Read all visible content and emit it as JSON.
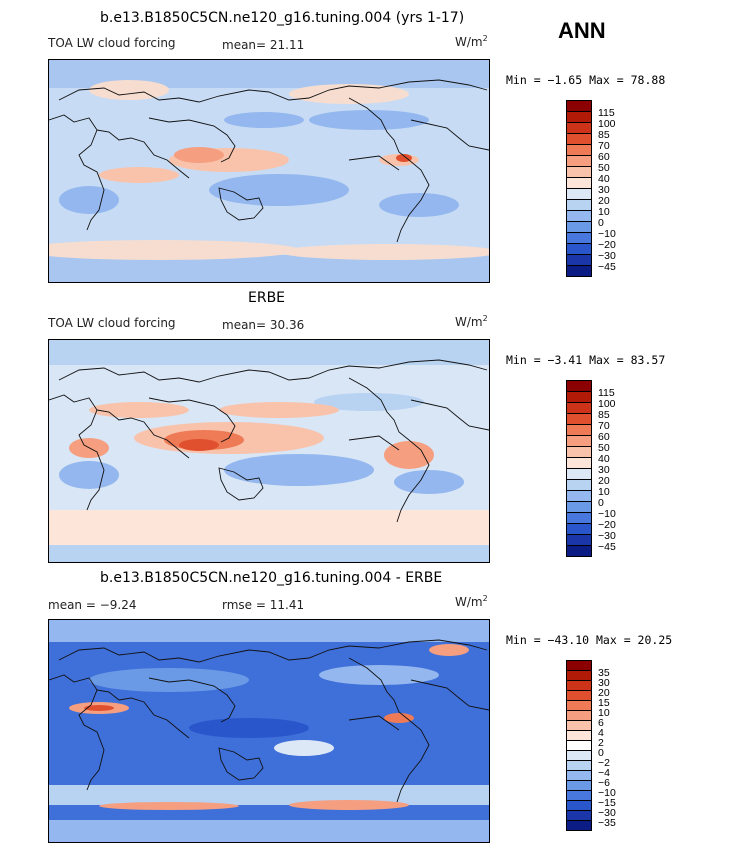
{
  "season": "ANN",
  "panels": [
    {
      "title": "b.e13.B1850C5CN.ne120_g16.tuning.004 (yrs 1-17)",
      "left_label": "TOA LW cloud forcing",
      "stat_text": "mean=  21.11",
      "units_base": "W/m",
      "units_exp": "2",
      "range_text": "Min =  −1.65 Max =  78.88",
      "legend_levels": [
        "115",
        "100",
        "85",
        "70",
        "60",
        "50",
        "40",
        "30",
        "20",
        "10",
        "0",
        "−10",
        "−20",
        "−30",
        "−45"
      ],
      "legend_colors": [
        "#8b0000",
        "#b21a08",
        "#cc3318",
        "#e0502e",
        "#ee7a56",
        "#f59f80",
        "#f9c3ab",
        "#fde5da",
        "#dce8f6",
        "#b8d2f2",
        "#93b7ee",
        "#6a9ae6",
        "#4877dd",
        "#2a56cc",
        "#1a36a8",
        "#0b1d85"
      ],
      "map_fill": "#c7dcf4"
    },
    {
      "title": "ERBE",
      "left_label": "TOA LW cloud forcing",
      "stat_text": "mean=  30.36",
      "units_base": "W/m",
      "units_exp": "2",
      "range_text": "Min =  −3.41 Max =  83.57",
      "legend_levels": [
        "115",
        "100",
        "85",
        "70",
        "60",
        "50",
        "40",
        "30",
        "20",
        "10",
        "0",
        "−10",
        "−20",
        "−30",
        "−45"
      ],
      "legend_colors": [
        "#8b0000",
        "#b21a08",
        "#cc3318",
        "#e0502e",
        "#ee7a56",
        "#f59f80",
        "#f9c3ab",
        "#fde5da",
        "#dce8f6",
        "#b8d2f2",
        "#93b7ee",
        "#6a9ae6",
        "#4877dd",
        "#2a56cc",
        "#1a36a8",
        "#0b1d85"
      ],
      "map_fill": "#d8e6f6"
    },
    {
      "title": "b.e13.B1850C5CN.ne120_g16.tuning.004 - ERBE",
      "left_label": "",
      "stat_text": "mean =   −9.24",
      "stat2_text": "rmse =   11.41",
      "units_base": "W/m",
      "units_exp": "2",
      "range_text": "Min = −43.10 Max =  20.25",
      "legend_levels": [
        "35",
        "30",
        "20",
        "15",
        "10",
        "6",
        "4",
        "2",
        "0",
        "−2",
        "−4",
        "−6",
        "−10",
        "−15",
        "−30",
        "−35"
      ],
      "legend_colors": [
        "#8b0000",
        "#b21a08",
        "#cc3318",
        "#e0502e",
        "#ee7a56",
        "#f59f80",
        "#f9c3ab",
        "#fde5da",
        "#ffffff",
        "#dce8f6",
        "#b8d2f2",
        "#93b7ee",
        "#6a9ae6",
        "#4877dd",
        "#2a56cc",
        "#1a36a8",
        "#0b1d85"
      ],
      "map_fill": "#3f6fd9"
    }
  ]
}
